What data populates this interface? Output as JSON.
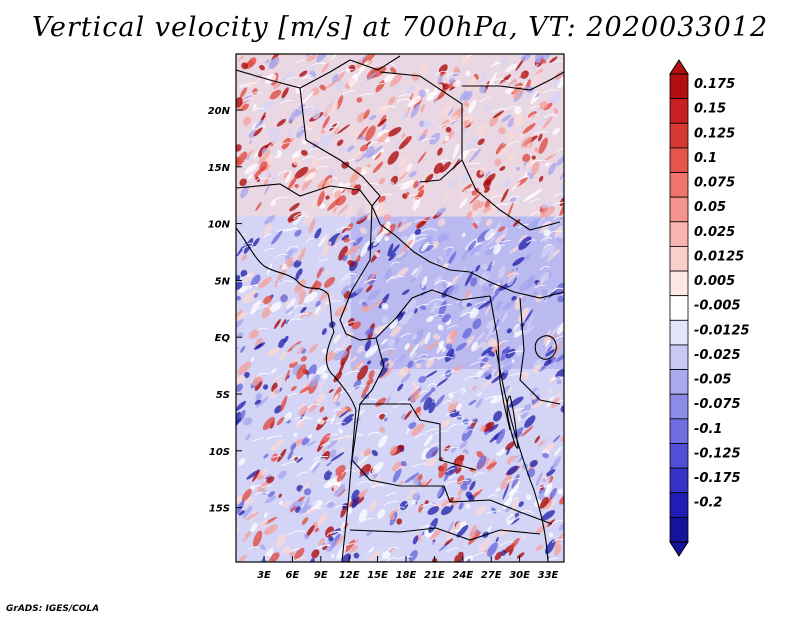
{
  "map": {
    "title": "Vertical velocity [m/s] at 700hPa, VT: 2020033012",
    "credit": "GrADS: IGES/COLA",
    "lat_labels": [
      "20N",
      "15N",
      "10N",
      "5N",
      "EQ",
      "5S",
      "10S",
      "15S"
    ],
    "lon_labels": [
      "3E",
      "6E",
      "9E",
      "12E",
      "15E",
      "18E",
      "21E",
      "24E",
      "27E",
      "30E",
      "33E"
    ],
    "colors": {
      "red_dark": "#a80000",
      "red": "#e0453a",
      "red_light": "#f4a09a",
      "pink": "#fbd9d5",
      "white": "#ffffff",
      "blue_pale": "#d4d4f6",
      "blue_light": "#a4a4ec",
      "blue": "#6464da",
      "blue_dark": "#1e1ea8"
    }
  },
  "colorbar": {
    "labels": [
      "0.175",
      "0.15",
      "0.125",
      "0.1",
      "0.075",
      "0.05",
      "0.025",
      "0.0125",
      "0.005",
      "-0.005",
      "-0.0125",
      "-0.025",
      "-0.05",
      "-0.075",
      "-0.1",
      "-0.125",
      "-0.175",
      "-0.2"
    ],
    "colors": [
      "#b21010",
      "#c62020",
      "#d63a32",
      "#e5554c",
      "#ee746c",
      "#f4948e",
      "#f8b4ae",
      "#fbd0cb",
      "#fde8e6",
      "#ffffff",
      "#e4e4fa",
      "#c8c8f4",
      "#aaaaee",
      "#8c8ce6",
      "#6e6ee0",
      "#5050d6",
      "#3434c8",
      "#1e1eb4",
      "#14149a"
    ]
  }
}
